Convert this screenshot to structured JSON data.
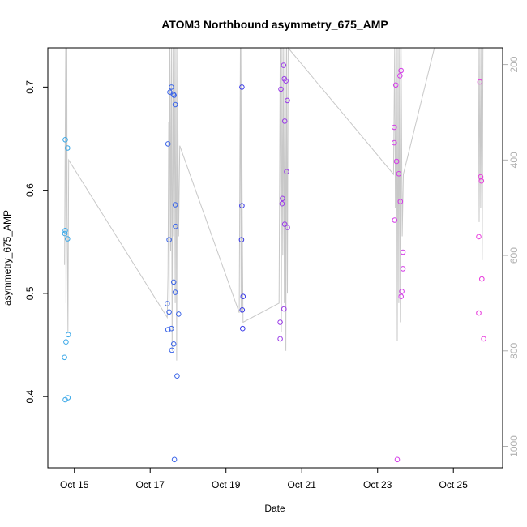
{
  "chart_data": {
    "type": "scatter",
    "title": "ATOM3 Northbound asymmetry_675_AMP",
    "xlabel": "Date",
    "ylabel": "asymmetry_675_AMP",
    "x_unit": "days since Oct 14 00:00",
    "x_range": [
      14.3,
      26.3
    ],
    "ylim": [
      0.331,
      0.738
    ],
    "y2lim": [
      1045,
      165
    ],
    "x_ticks": [
      {
        "value": 15,
        "label": "Oct 15"
      },
      {
        "value": 17,
        "label": "Oct 17"
      },
      {
        "value": 19,
        "label": "Oct 19"
      },
      {
        "value": 21,
        "label": "Oct 21"
      },
      {
        "value": 23,
        "label": "Oct 23"
      },
      {
        "value": 25,
        "label": "Oct 25"
      }
    ],
    "y_ticks": [
      {
        "value": 0.4,
        "label": "0.4"
      },
      {
        "value": 0.5,
        "label": "0.5"
      },
      {
        "value": 0.6,
        "label": "0.6"
      },
      {
        "value": 0.7,
        "label": "0.7"
      }
    ],
    "y2_ticks": [
      {
        "value": 200,
        "label": "200"
      },
      {
        "value": 400,
        "label": "400"
      },
      {
        "value": 600,
        "label": "600"
      },
      {
        "value": 800,
        "label": "800"
      },
      {
        "value": 1000,
        "label": "1000"
      }
    ],
    "grid": false,
    "series": [
      {
        "name": "asymmetry_675_AMP",
        "points": [
          {
            "x": 14.76,
            "y": 0.649,
            "color": "#3aa8e8"
          },
          {
            "x": 14.76,
            "y": 0.561,
            "color": "#3aa8e8"
          },
          {
            "x": 14.75,
            "y": 0.558,
            "color": "#3aa8e8"
          },
          {
            "x": 14.74,
            "y": 0.438,
            "color": "#3aa8e8"
          },
          {
            "x": 14.76,
            "y": 0.397,
            "color": "#3aa8e8"
          },
          {
            "x": 14.78,
            "y": 0.453,
            "color": "#3aa8e8"
          },
          {
            "x": 14.82,
            "y": 0.641,
            "color": "#3aa8e8"
          },
          {
            "x": 14.82,
            "y": 0.553,
            "color": "#3aa8e8"
          },
          {
            "x": 14.84,
            "y": 0.46,
            "color": "#3aa8e8"
          },
          {
            "x": 14.83,
            "y": 0.399,
            "color": "#3aa8e8"
          },
          {
            "x": 17.45,
            "y": 0.49,
            "color": "#3a64e8"
          },
          {
            "x": 17.47,
            "y": 0.645,
            "color": "#3a64e8"
          },
          {
            "x": 17.47,
            "y": 0.465,
            "color": "#3a64e8"
          },
          {
            "x": 17.5,
            "y": 0.552,
            "color": "#3a64e8"
          },
          {
            "x": 17.5,
            "y": 0.482,
            "color": "#3a64e8"
          },
          {
            "x": 17.52,
            "y": 0.695,
            "color": "#3a64e8"
          },
          {
            "x": 17.56,
            "y": 0.7,
            "color": "#3a64e8"
          },
          {
            "x": 17.56,
            "y": 0.466,
            "color": "#3a64e8"
          },
          {
            "x": 17.57,
            "y": 0.445,
            "color": "#3a64e8"
          },
          {
            "x": 17.61,
            "y": 0.693,
            "color": "#3a64e8"
          },
          {
            "x": 17.63,
            "y": 0.692,
            "color": "#3a64e8"
          },
          {
            "x": 17.62,
            "y": 0.511,
            "color": "#3a64e8"
          },
          {
            "x": 17.62,
            "y": 0.451,
            "color": "#3a64e8"
          },
          {
            "x": 17.64,
            "y": 0.339,
            "color": "#3a64e8"
          },
          {
            "x": 17.66,
            "y": 0.683,
            "color": "#3a64e8"
          },
          {
            "x": 17.66,
            "y": 0.586,
            "color": "#3a64e8"
          },
          {
            "x": 17.67,
            "y": 0.565,
            "color": "#3a64e8"
          },
          {
            "x": 17.66,
            "y": 0.501,
            "color": "#3a64e8"
          },
          {
            "x": 17.71,
            "y": 0.42,
            "color": "#3a64e8"
          },
          {
            "x": 17.75,
            "y": 0.48,
            "color": "#3a64e8"
          },
          {
            "x": 19.42,
            "y": 0.7,
            "color": "#3a3ae8"
          },
          {
            "x": 19.42,
            "y": 0.585,
            "color": "#3a3ae8"
          },
          {
            "x": 19.41,
            "y": 0.552,
            "color": "#3a3ae8"
          },
          {
            "x": 19.45,
            "y": 0.497,
            "color": "#3a3ae8"
          },
          {
            "x": 19.43,
            "y": 0.484,
            "color": "#3a3ae8"
          },
          {
            "x": 19.44,
            "y": 0.466,
            "color": "#3a3ae8"
          },
          {
            "x": 20.43,
            "y": 0.472,
            "color": "#9a3ae8"
          },
          {
            "x": 20.43,
            "y": 0.456,
            "color": "#9a3ae8"
          },
          {
            "x": 20.45,
            "y": 0.698,
            "color": "#9a3ae8"
          },
          {
            "x": 20.48,
            "y": 0.587,
            "color": "#9a3ae8"
          },
          {
            "x": 20.49,
            "y": 0.592,
            "color": "#9a3ae8"
          },
          {
            "x": 20.52,
            "y": 0.721,
            "color": "#9a3ae8"
          },
          {
            "x": 20.54,
            "y": 0.708,
            "color": "#9a3ae8"
          },
          {
            "x": 20.55,
            "y": 0.667,
            "color": "#9a3ae8"
          },
          {
            "x": 20.55,
            "y": 0.567,
            "color": "#9a3ae8"
          },
          {
            "x": 20.53,
            "y": 0.485,
            "color": "#9a3ae8"
          },
          {
            "x": 20.58,
            "y": 0.706,
            "color": "#9a3ae8"
          },
          {
            "x": 20.6,
            "y": 0.618,
            "color": "#9a3ae8"
          },
          {
            "x": 20.62,
            "y": 0.687,
            "color": "#9a3ae8"
          },
          {
            "x": 20.62,
            "y": 0.564,
            "color": "#9a3ae8"
          },
          {
            "x": 23.44,
            "y": 0.661,
            "color": "#d43ae8"
          },
          {
            "x": 23.44,
            "y": 0.646,
            "color": "#d43ae8"
          },
          {
            "x": 23.45,
            "y": 0.571,
            "color": "#d43ae8"
          },
          {
            "x": 23.48,
            "y": 0.702,
            "color": "#d43ae8"
          },
          {
            "x": 23.5,
            "y": 0.628,
            "color": "#d43ae8"
          },
          {
            "x": 23.52,
            "y": 0.339,
            "color": "#d43ae8"
          },
          {
            "x": 23.56,
            "y": 0.616,
            "color": "#d43ae8"
          },
          {
            "x": 23.59,
            "y": 0.711,
            "color": "#d43ae8"
          },
          {
            "x": 23.6,
            "y": 0.589,
            "color": "#d43ae8"
          },
          {
            "x": 23.62,
            "y": 0.716,
            "color": "#d43ae8"
          },
          {
            "x": 23.62,
            "y": 0.497,
            "color": "#d43ae8"
          },
          {
            "x": 23.64,
            "y": 0.502,
            "color": "#d43ae8"
          },
          {
            "x": 23.67,
            "y": 0.54,
            "color": "#d43ae8"
          },
          {
            "x": 23.67,
            "y": 0.524,
            "color": "#d43ae8"
          },
          {
            "x": 25.67,
            "y": 0.555,
            "color": "#e83adc"
          },
          {
            "x": 25.67,
            "y": 0.481,
            "color": "#e83adc"
          },
          {
            "x": 25.7,
            "y": 0.705,
            "color": "#e83adc"
          },
          {
            "x": 25.72,
            "y": 0.613,
            "color": "#e83adc"
          },
          {
            "x": 25.74,
            "y": 0.609,
            "color": "#e83adc"
          },
          {
            "x": 25.75,
            "y": 0.514,
            "color": "#e83adc"
          },
          {
            "x": 25.8,
            "y": 0.456,
            "color": "#e83adc"
          }
        ]
      },
      {
        "name": "secondary (right axis) trace",
        "color": "#c8c8c8",
        "x": [
          14.74,
          14.76,
          14.77,
          14.78,
          14.79,
          14.8,
          14.81,
          14.83,
          14.85,
          17.45,
          17.47,
          17.49,
          17.5,
          17.52,
          17.54,
          17.56,
          17.58,
          17.6,
          17.62,
          17.64,
          17.66,
          17.68,
          17.7,
          17.72,
          17.75,
          17.78,
          19.35,
          19.38,
          19.4,
          19.41,
          19.43,
          19.45,
          20.4,
          20.43,
          20.46,
          20.48,
          20.5,
          20.52,
          20.54,
          20.56,
          20.58,
          20.6,
          20.62,
          20.64,
          23.42,
          23.45,
          23.47,
          23.5,
          23.52,
          23.54,
          23.56,
          23.58,
          23.6,
          23.62,
          23.65,
          23.68,
          24.5,
          25.66,
          25.68,
          25.7,
          25.72,
          25.74,
          25.76,
          25.78
        ],
        "values": [
          620,
          330,
          165,
          700,
          350,
          165,
          520,
          760,
          400,
          730,
          640,
          320,
          700,
          165,
          590,
          165,
          800,
          165,
          560,
          165,
          700,
          165,
          820,
          165,
          560,
          370,
          720,
          165,
          720,
          165,
          520,
          740,
          700,
          165,
          760,
          165,
          600,
          165,
          700,
          165,
          800,
          165,
          680,
          165,
          430,
          165,
          500,
          165,
          780,
          165,
          700,
          165,
          740,
          165,
          560,
          430,
          165,
          165,
          530,
          165,
          500,
          165,
          610,
          165
        ]
      }
    ]
  }
}
